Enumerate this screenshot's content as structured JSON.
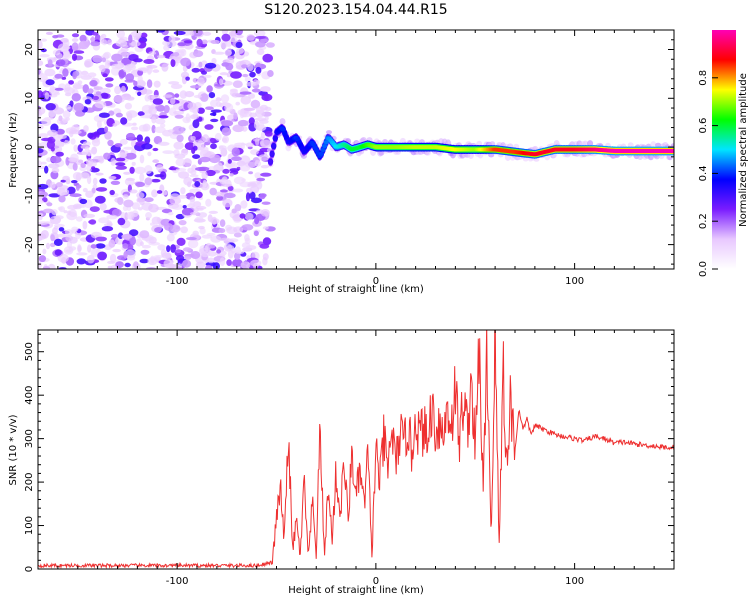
{
  "figure": {
    "title": "S120.2023.154.04.44.R15"
  },
  "chart_data": [
    {
      "type": "heatmap",
      "xlabel": "Height of straight line (km)",
      "ylabel": "Frequency (Hz)",
      "xlim": [
        -170,
        150
      ],
      "ylim": [
        -25,
        24
      ],
      "x_ticks": [
        -100,
        0,
        100
      ],
      "y_ticks": [
        -20,
        -10,
        0,
        10,
        20
      ],
      "colorbar": {
        "label": "Normalized spectral amplitude",
        "range": [
          0,
          1
        ],
        "ticks": [
          0.0,
          0.2,
          0.4,
          0.6,
          0.8
        ],
        "colormap": [
          "#ffffff",
          "#e8c8ff",
          "#7a1cff",
          "#0000ff",
          "#00e5ff",
          "#00ff00",
          "#ffff00",
          "#ff0000",
          "#ff00b4"
        ]
      },
      "noise_region_x_range": [
        -170,
        -53
      ],
      "signal_ridge": {
        "x": [
          -53,
          -50,
          -47,
          -44,
          -40,
          -36,
          -32,
          -28,
          -24,
          -20,
          -16,
          -12,
          -8,
          -4,
          0,
          10,
          20,
          30,
          40,
          50,
          60,
          70,
          80,
          90,
          100,
          110,
          120,
          130,
          140,
          150
        ],
        "frequency_hz": [
          -3,
          3,
          4,
          1,
          2,
          -1,
          1,
          -2,
          2,
          0,
          0.5,
          -0.5,
          0,
          0.5,
          0,
          0,
          0,
          0,
          -0.5,
          -0.5,
          -0.5,
          -1,
          -1.5,
          -0.5,
          -0.5,
          -0.5,
          -0.8,
          -0.8,
          -0.8,
          -0.8
        ],
        "amplitude": [
          0.3,
          0.35,
          0.4,
          0.35,
          0.4,
          0.35,
          0.4,
          0.4,
          0.45,
          0.5,
          0.55,
          0.6,
          0.6,
          0.65,
          0.7,
          0.7,
          0.72,
          0.72,
          0.75,
          0.7,
          0.85,
          0.85,
          0.9,
          0.9,
          0.9,
          0.95,
          1.0,
          1.0,
          1.0,
          1.0
        ]
      }
    },
    {
      "type": "line",
      "xlabel": "Height of straight line (km)",
      "ylabel": "SNR (10 * v/v)",
      "xlim": [
        -170,
        150
      ],
      "ylim": [
        0,
        550
      ],
      "x_ticks": [
        -100,
        0,
        100
      ],
      "y_ticks": [
        0,
        100,
        200,
        300,
        400,
        500
      ],
      "series": [
        {
          "color": "#ee3030",
          "x": [
            -170,
            -150,
            -120,
            -100,
            -80,
            -60,
            -52,
            -50,
            -48,
            -46,
            -44,
            -42,
            -40,
            -38,
            -36,
            -34,
            -32,
            -30,
            -28,
            -26,
            -24,
            -22,
            -20,
            -18,
            -16,
            -14,
            -12,
            -10,
            -8,
            -6,
            -4,
            -2,
            0,
            2,
            4,
            6,
            8,
            10,
            12,
            14,
            16,
            18,
            20,
            22,
            24,
            26,
            28,
            30,
            32,
            34,
            36,
            38,
            40,
            42,
            44,
            46,
            48,
            50,
            52,
            54,
            56,
            58,
            60,
            62,
            64,
            66,
            68,
            70,
            72,
            74,
            76,
            78,
            80,
            85,
            90,
            95,
            100,
            105,
            110,
            115,
            120,
            125,
            130,
            135,
            140,
            145,
            150
          ],
          "y": [
            8,
            8,
            8,
            8,
            8,
            8,
            15,
            120,
            180,
            60,
            325,
            40,
            110,
            30,
            200,
            20,
            150,
            35,
            325,
            30,
            180,
            70,
            220,
            120,
            250,
            110,
            270,
            160,
            230,
            140,
            260,
            35,
            275,
            200,
            300,
            220,
            330,
            230,
            320,
            270,
            340,
            260,
            360,
            300,
            330,
            280,
            380,
            320,
            340,
            300,
            380,
            330,
            420,
            280,
            400,
            320,
            440,
            260,
            520,
            170,
            510,
            60,
            555,
            40,
            480,
            220,
            410,
            270,
            370,
            320,
            345,
            310,
            330,
            320,
            310,
            305,
            300,
            295,
            305,
            300,
            290,
            292,
            288,
            285,
            283,
            280,
            280
          ]
        }
      ]
    }
  ]
}
